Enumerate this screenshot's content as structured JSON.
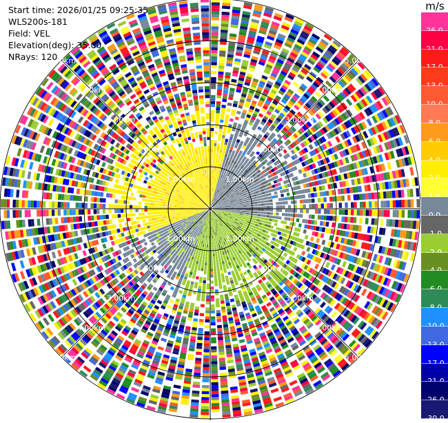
{
  "header": {
    "start_time": "Start time: 2026/01/25 09:25:35",
    "instrument": "WLS200s-181",
    "field": "Field: VEL",
    "elevation": "Elevation(deg): 35.00",
    "nrays": "NRays: 120"
  },
  "range_rings": {
    "unit": "km",
    "rings": [
      {
        "label": "1.00km",
        "labels": [
          "1.00km",
          "1.00km",
          "1.00km",
          "1.00km"
        ]
      },
      {
        "label": "2.00km",
        "labels": [
          "2.00km",
          "2.00km",
          "2.00km",
          "2.00km"
        ]
      },
      {
        "label": "3.00km",
        "labels": [
          "3.00km",
          "3.00km",
          "3.00km",
          "3.00km"
        ]
      },
      {
        "label": "4.00km",
        "labels": [
          "4.00km",
          "4.00km",
          "4.00km",
          "4.00km"
        ]
      },
      {
        "label": "5.00km",
        "labels": [
          "5.00km",
          "5.00km",
          "5.00km",
          "5.00km"
        ]
      }
    ]
  },
  "colorbar": {
    "unit": "m/s",
    "levels": [
      {
        "label": "26.0",
        "color": "#ff3399"
      },
      {
        "label": "21.0",
        "color": "#ff0044"
      },
      {
        "label": "17.0",
        "color": "#ff1a1a"
      },
      {
        "label": "13.0",
        "color": "#ff3b1a"
      },
      {
        "label": "10.0",
        "color": "#ff5a33"
      },
      {
        "label": "8.0",
        "color": "#ff7a55"
      },
      {
        "label": "6.0",
        "color": "#ff9a1a"
      },
      {
        "label": "4.0",
        "color": "#ffcc00"
      },
      {
        "label": "2.0",
        "color": "#ffee00"
      },
      {
        "label": "1.0",
        "color": "#ffff33"
      },
      {
        "label": "0.0",
        "color": "#778899"
      },
      {
        "label": "-1.0",
        "color": "#666666"
      },
      {
        "label": "-2.0",
        "color": "#9acd32"
      },
      {
        "label": "-4.0",
        "color": "#6b8e23"
      },
      {
        "label": "-6.0",
        "color": "#228b22"
      },
      {
        "label": "-8.0",
        "color": "#2e8b57"
      },
      {
        "label": "-10.0",
        "color": "#1e90ff"
      },
      {
        "label": "-13.0",
        "color": "#4169e1"
      },
      {
        "label": "-17.0",
        "color": "#0000ff"
      },
      {
        "label": "-21.0",
        "color": "#0000aa"
      },
      {
        "label": "-26.0",
        "color": "#00006b"
      },
      {
        "label": "-30.0",
        "color": "#191970"
      }
    ]
  }
}
